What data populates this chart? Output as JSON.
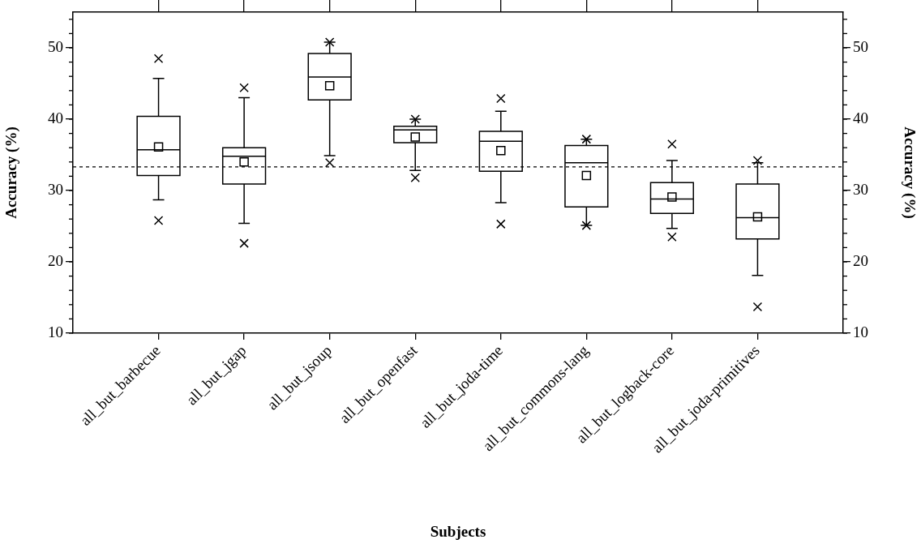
{
  "chart_data": {
    "type": "box",
    "xlabel": "Subjects",
    "ylabel": "Accuracy (%)",
    "y2label": "Accuracy (%)",
    "categories": [
      "all_but_barbecue",
      "all_but_jgap",
      "all_but_jsoup",
      "all_but_openfast",
      "all_but_joda-time",
      "all_but_commons-lang",
      "all_but_logback-core",
      "all_but_joda-primitives"
    ],
    "boxes": [
      {
        "low": 28.7,
        "q1": 32.1,
        "median": 35.7,
        "q3": 40.4,
        "high": 45.7,
        "mean": 36.1,
        "outliers": [
          48.5,
          25.8
        ]
      },
      {
        "low": 25.4,
        "q1": 30.9,
        "median": 34.8,
        "q3": 36.0,
        "high": 43.0,
        "mean": 34.0,
        "outliers": [
          44.4,
          22.6
        ]
      },
      {
        "low": 34.9,
        "q1": 42.7,
        "median": 45.9,
        "q3": 49.2,
        "high": 50.8,
        "mean": 44.7,
        "outliers": [
          50.8,
          33.9
        ]
      },
      {
        "low": 32.8,
        "q1": 36.7,
        "median": 38.5,
        "q3": 39.0,
        "high": 40.0,
        "mean": 37.5,
        "outliers": [
          40.0,
          31.8
        ]
      },
      {
        "low": 28.3,
        "q1": 32.7,
        "median": 36.9,
        "q3": 38.3,
        "high": 41.1,
        "mean": 35.6,
        "outliers": [
          42.9,
          25.3
        ]
      },
      {
        "low": 25.1,
        "q1": 27.7,
        "median": 33.9,
        "q3": 36.3,
        "high": 37.2,
        "mean": 32.1,
        "outliers": [
          37.2,
          25.1
        ]
      },
      {
        "low": 24.7,
        "q1": 26.8,
        "median": 28.8,
        "q3": 31.1,
        "high": 34.2,
        "mean": 29.1,
        "outliers": [
          36.5,
          23.5
        ]
      },
      {
        "low": 18.1,
        "q1": 23.2,
        "median": 26.2,
        "q3": 30.9,
        "high": 33.9,
        "mean": 26.3,
        "outliers": [
          34.2,
          13.7
        ]
      }
    ],
    "ref_lines": [
      {
        "axis": "y",
        "value": 33.3,
        "line_style": "dashed",
        "color": "#000000"
      }
    ],
    "ylim": [
      10,
      55
    ],
    "yticks": [
      10,
      20,
      30,
      40,
      50
    ],
    "y2lim": [
      10,
      55
    ],
    "y2ticks": [
      10,
      20,
      30,
      40,
      50
    ],
    "grid": false,
    "legend": false
  }
}
